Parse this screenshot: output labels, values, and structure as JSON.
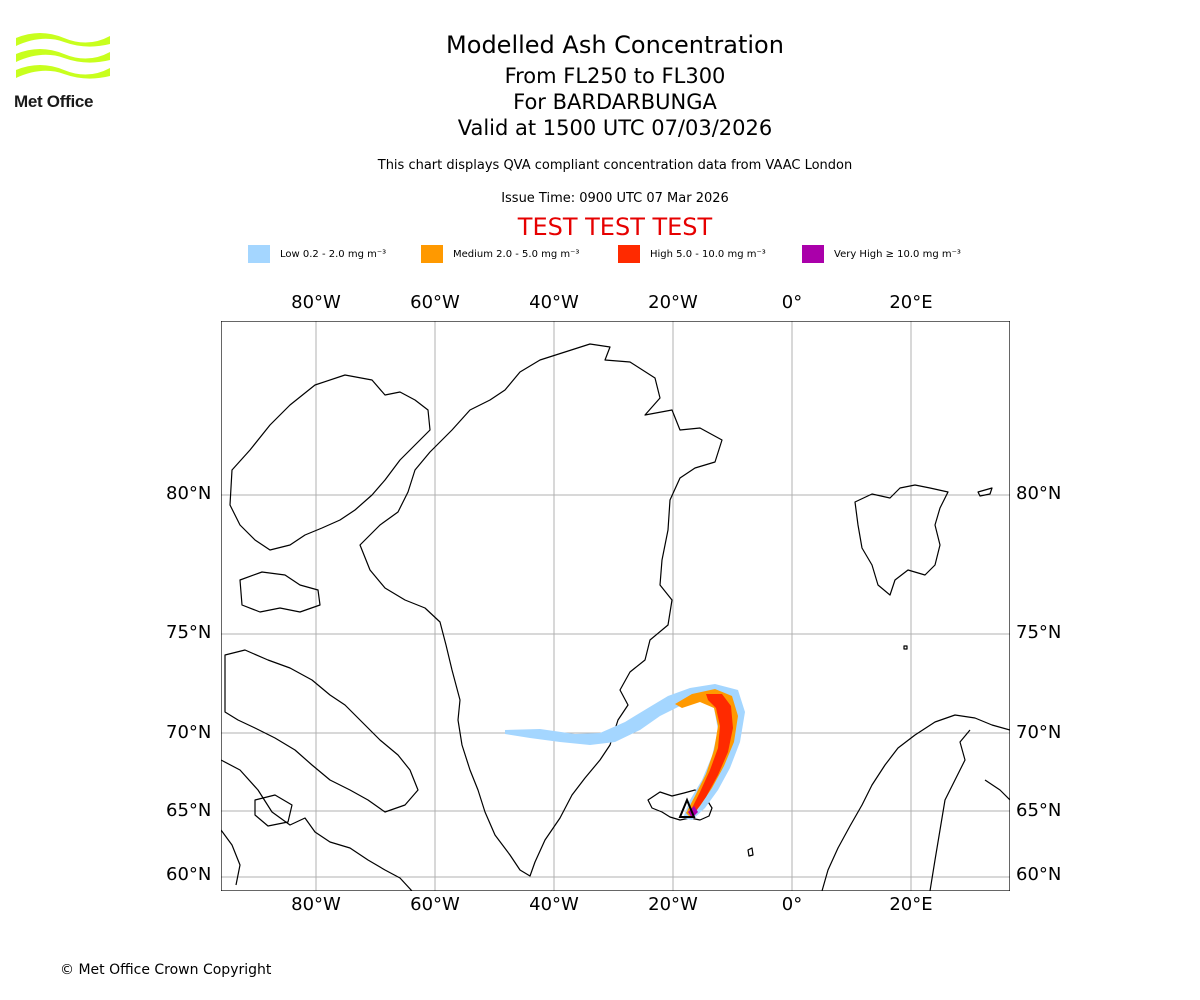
{
  "logo": {
    "text": "Met Office",
    "color": "#c8ff1e"
  },
  "header": {
    "title": "Modelled Ash Concentration",
    "levels": "From FL250 to FL300",
    "volcano": "For BARDARBUNGA",
    "valid": "Valid at 1500 UTC 07/03/2026",
    "note": "This chart displays QVA compliant concentration data from VAAC London",
    "issue": "Issue Time: 0900 UTC 07 Mar 2026",
    "test_banner": "TEST TEST TEST"
  },
  "legend": [
    {
      "label": "Low 0.2 - 2.0 mg m⁻³",
      "color": "#a4d6ff"
    },
    {
      "label": "Medium 2.0 - 5.0 mg m⁻³",
      "color": "#ff9900"
    },
    {
      "label": "High 5.0 - 10.0 mg m⁻³",
      "color": "#ff2a00"
    },
    {
      "label": "Very High ≥ 10.0 mg m⁻³",
      "color": "#aa00aa"
    }
  ],
  "map": {
    "lon_labels": [
      "80°W",
      "60°W",
      "40°W",
      "20°W",
      "0°",
      "20°E"
    ],
    "lat_labels": [
      "80°N",
      "75°N",
      "70°N",
      "65°N",
      "60°N"
    ],
    "volcano_marker": "triangle-icon"
  },
  "footer": {
    "copyright": "© Met Office Crown Copyright"
  }
}
